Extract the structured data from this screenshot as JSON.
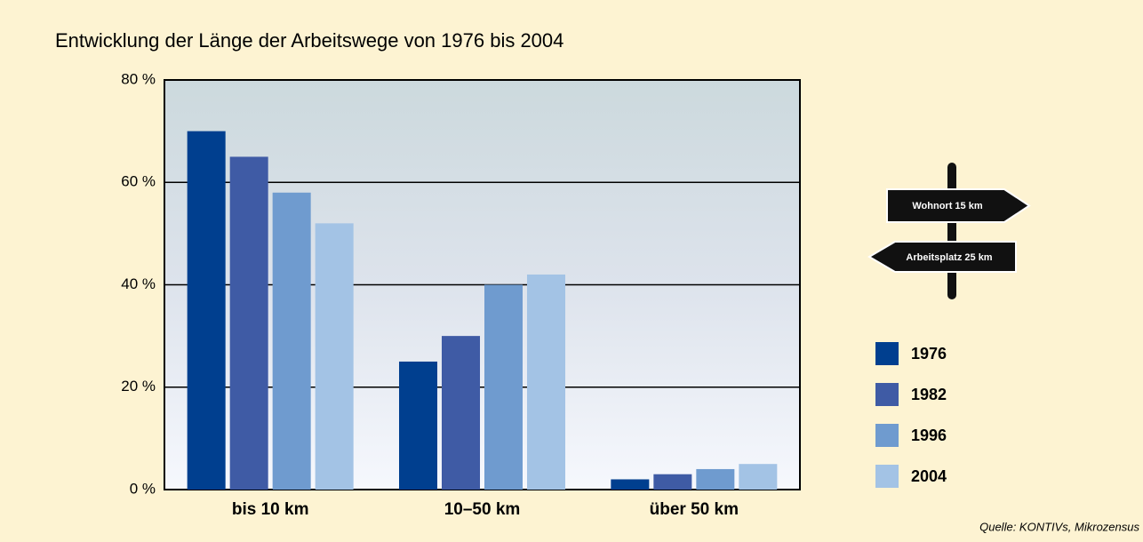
{
  "chart_data": {
    "type": "bar",
    "title": "Entwicklung der Länge der Arbeitswege von 1976 bis 2004",
    "categories": [
      "bis 10 km",
      "10–50 km",
      "über 50 km"
    ],
    "series": [
      {
        "name": "1976",
        "color": "#003f8f",
        "values": [
          70,
          25,
          2
        ]
      },
      {
        "name": "1982",
        "color": "#3f5ba5",
        "values": [
          65,
          30,
          3
        ]
      },
      {
        "name": "1996",
        "color": "#6f9bcf",
        "values": [
          58,
          40,
          4
        ]
      },
      {
        "name": "2004",
        "color": "#a3c3e5",
        "values": [
          52,
          42,
          5
        ]
      }
    ],
    "ylim": [
      0,
      80
    ],
    "yticks": [
      {
        "value": 0,
        "label": "0 %"
      },
      {
        "value": 20,
        "label": "20 %"
      },
      {
        "value": 40,
        "label": "40 %"
      },
      {
        "value": 60,
        "label": "60 %"
      },
      {
        "value": 80,
        "label": "80 %"
      }
    ],
    "grid": true,
    "legend": "right",
    "annotations": [
      "Wohnort 15 km",
      "Arbeitsplatz 25 km"
    ],
    "source": "Quelle: KONTIVs, Mikrozensus"
  }
}
